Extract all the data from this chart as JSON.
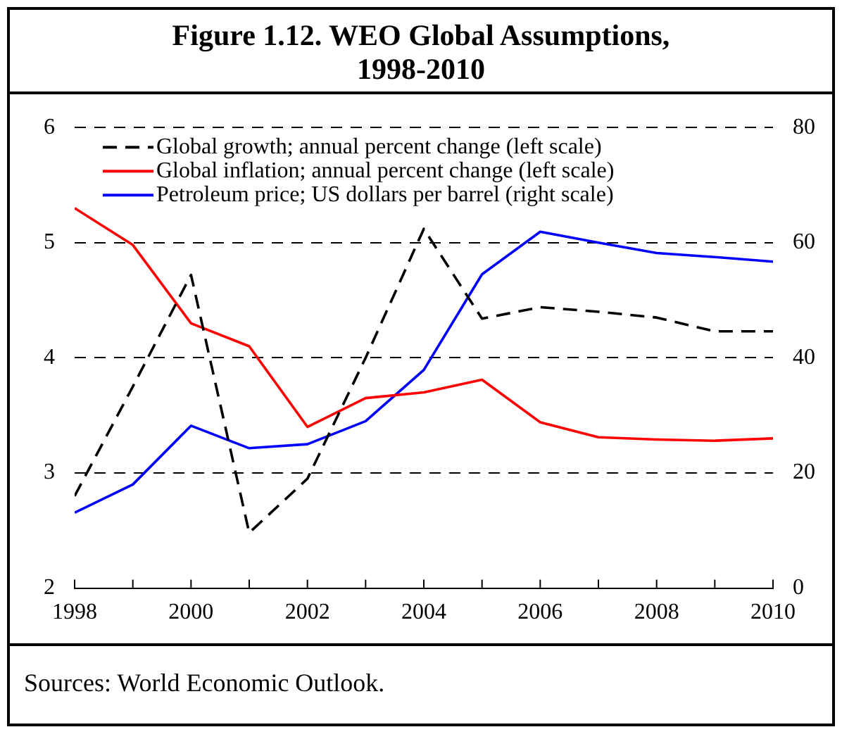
{
  "chart_data": {
    "type": "line",
    "title": "Figure 1.12. WEO Global Assumptions, 1998-2010",
    "annotations": [
      "Sources: World Economic Outlook."
    ],
    "x": [
      1998,
      1999,
      2000,
      2001,
      2002,
      2003,
      2004,
      2005,
      2006,
      2007,
      2008,
      2009,
      2010
    ],
    "series": [
      {
        "name": "Global growth; annual percent change (left scale)",
        "color": "#000000",
        "line_style": "dashed",
        "values": [
          2.8,
          3.75,
          4.72,
          2.48,
          2.95,
          4.0,
          5.12,
          4.34,
          4.44,
          4.4,
          4.35,
          4.23,
          4.23
        ]
      },
      {
        "name": "Global inflation; annual percent change (left scale)",
        "color": "#ff0000",
        "values": [
          5.3,
          4.98,
          4.3,
          4.1,
          3.4,
          3.65,
          3.7,
          3.81,
          3.44,
          3.31,
          3.29,
          3.28,
          3.3
        ]
      },
      {
        "name": "Petroleum price; US dollars per barrel (right scale)",
        "color": "#0000ff",
        "axis": "y2",
        "values": [
          13.1,
          18,
          28.2,
          24.3,
          25,
          29,
          37.9,
          54.5,
          61.9,
          60,
          58.2,
          57.5,
          56.7
        ]
      }
    ],
    "xlim": [
      1998,
      2010
    ],
    "xticks": [
      1998,
      {
        "value": 1999,
        "label": null
      },
      2000,
      {
        "value": 2001,
        "label": null
      },
      2002,
      {
        "value": 2003,
        "label": null
      },
      2004,
      {
        "value": 2005,
        "label": null
      },
      2006,
      {
        "value": 2007,
        "label": null
      },
      2008,
      {
        "value": 2009,
        "label": null
      },
      2010
    ],
    "ylim": [
      2,
      6
    ],
    "yticks": [
      2,
      3,
      4,
      5,
      6
    ],
    "y2lim": [
      0,
      80
    ],
    "y2ticks": [
      0,
      20,
      40,
      60,
      80
    ],
    "grid": "y",
    "legend": "top left",
    "marker": "none",
    "line_style": "solid"
  }
}
